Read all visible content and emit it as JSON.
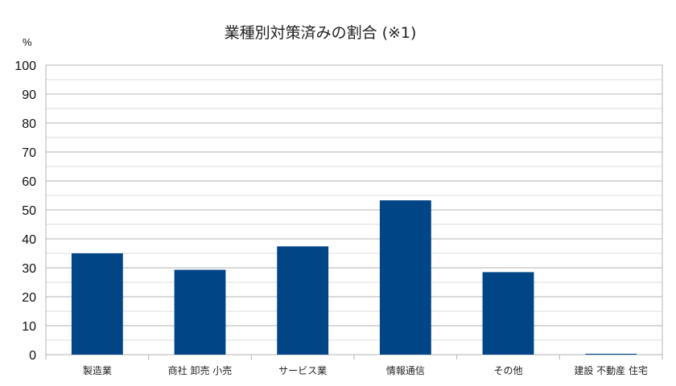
{
  "chart_data": {
    "type": "bar",
    "title": "業種別対策済みの割合 (※1)",
    "xlabel": "",
    "ylabel": "",
    "unit_label": "%",
    "categories": [
      "製造業",
      "商社 卸売 小売",
      "サービス業",
      "情報通信",
      "その他",
      "建設 不動産 住宅"
    ],
    "values": [
      35,
      29.3,
      37.4,
      53.3,
      28.5,
      0.3
    ],
    "ylim": [
      0,
      100
    ],
    "yticks": [
      0,
      10,
      20,
      30,
      40,
      50,
      60,
      70,
      80,
      90,
      100
    ],
    "grid": true,
    "legend": "none",
    "colors": {
      "bar": "#004586",
      "major_grid": "#b3b3b3",
      "minor_grid": "#dddddd",
      "axis": "#b3b3b3"
    }
  }
}
